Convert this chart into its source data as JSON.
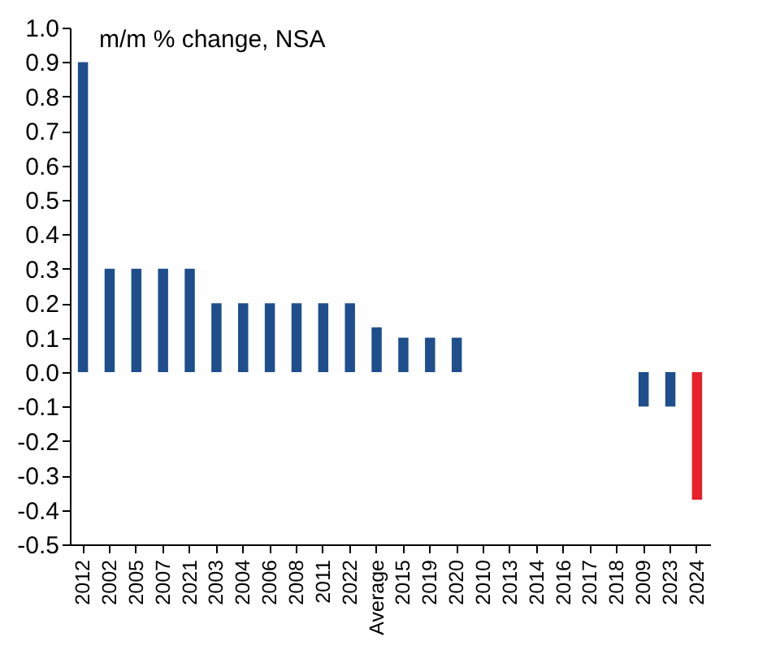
{
  "chart_data": {
    "type": "bar",
    "subtitle": "m/m % change, NSA",
    "categories": [
      "2012",
      "2002",
      "2005",
      "2007",
      "2021",
      "2003",
      "2004",
      "2006",
      "2008",
      "2011",
      "2022",
      "Average",
      "2015",
      "2019",
      "2020",
      "2010",
      "2013",
      "2014",
      "2016",
      "2017",
      "2018",
      "2009",
      "2023",
      "2024"
    ],
    "values": [
      0.9,
      0.3,
      0.3,
      0.3,
      0.3,
      0.2,
      0.2,
      0.2,
      0.2,
      0.2,
      0.2,
      0.13,
      0.1,
      0.1,
      0.1,
      0,
      0,
      0,
      0,
      0,
      0,
      -0.1,
      -0.1,
      -0.37
    ],
    "colors": [
      "#1f4e8c",
      "#1f4e8c",
      "#1f4e8c",
      "#1f4e8c",
      "#1f4e8c",
      "#1f4e8c",
      "#1f4e8c",
      "#1f4e8c",
      "#1f4e8c",
      "#1f4e8c",
      "#1f4e8c",
      "#1f4e8c",
      "#1f4e8c",
      "#1f4e8c",
      "#1f4e8c",
      "#1f4e8c",
      "#1f4e8c",
      "#1f4e8c",
      "#1f4e8c",
      "#1f4e8c",
      "#1f4e8c",
      "#1f4e8c",
      "#1f4e8c",
      "#e8202a"
    ],
    "ylim": [
      -0.5,
      1.0
    ],
    "yticks": [
      -0.5,
      -0.4,
      -0.3,
      -0.2,
      -0.1,
      {
        "value": 0,
        "label": "0.0"
      },
      0.1,
      0.2,
      0.3,
      0.4,
      0.5,
      0.6,
      0.7,
      0.8,
      0.9,
      {
        "value": 1,
        "label": "1.0"
      }
    ],
    "grid": false
  }
}
